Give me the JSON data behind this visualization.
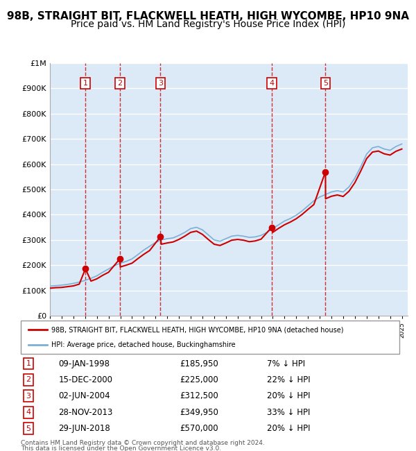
{
  "title": "98B, STRAIGHT BIT, FLACKWELL HEATH, HIGH WYCOMBE, HP10 9NA",
  "subtitle": "Price paid vs. HM Land Registry's House Price Index (HPI)",
  "title_fontsize": 11,
  "subtitle_fontsize": 10,
  "background_color": "#ffffff",
  "plot_bg_color": "#dce9f7",
  "grid_color": "#ffffff",
  "ylim": [
    0,
    1000000
  ],
  "ytick_labels": [
    "£0",
    "£100K",
    "£200K",
    "£300K",
    "£400K",
    "£500K",
    "£600K",
    "£700K",
    "£800K",
    "£900K",
    "£1M"
  ],
  "ytick_values": [
    0,
    100000,
    200000,
    300000,
    400000,
    500000,
    600000,
    700000,
    800000,
    900000,
    1000000
  ],
  "xlim_start": 1995.0,
  "xlim_end": 2025.5,
  "hpi_line_color": "#7bafd4",
  "price_line_color": "#cc0000",
  "marker_color": "#cc0000",
  "dashed_line_color": "#cc0000",
  "sale_dates_x": [
    1998.03,
    2000.96,
    2004.42,
    2013.91,
    2018.49
  ],
  "sale_prices_y": [
    185950,
    225000,
    312500,
    349950,
    570000
  ],
  "sale_labels": [
    "1",
    "2",
    "3",
    "4",
    "5"
  ],
  "sale_date_strings": [
    "09-JAN-1998",
    "15-DEC-2000",
    "02-JUN-2004",
    "28-NOV-2013",
    "29-JUN-2018"
  ],
  "sale_price_strings": [
    "£185,950",
    "£225,000",
    "£312,500",
    "£349,950",
    "£570,000"
  ],
  "sale_hpi_strings": [
    "7% ↓ HPI",
    "22% ↓ HPI",
    "20% ↓ HPI",
    "33% ↓ HPI",
    "20% ↓ HPI"
  ],
  "legend_line1": "98B, STRAIGHT BIT, FLACKWELL HEATH, HIGH WYCOMBE, HP10 9NA (detached house)",
  "legend_line2": "HPI: Average price, detached house, Buckinghamshire",
  "footer_line1": "Contains HM Land Registry data © Crown copyright and database right 2024.",
  "footer_line2": "This data is licensed under the Open Government Licence v3.0.",
  "hpi_years": [
    1995,
    1995.5,
    1996,
    1996.5,
    1997,
    1997.5,
    1998,
    1998.5,
    1999,
    1999.5,
    2000,
    2000.5,
    2001,
    2001.5,
    2002,
    2002.5,
    2003,
    2003.5,
    2004,
    2004.5,
    2005,
    2005.5,
    2006,
    2006.5,
    2007,
    2007.5,
    2008,
    2008.5,
    2009,
    2009.5,
    2010,
    2010.5,
    2011,
    2011.5,
    2012,
    2012.5,
    2013,
    2013.5,
    2014,
    2014.5,
    2015,
    2015.5,
    2016,
    2016.5,
    2017,
    2017.5,
    2018,
    2018.5,
    2019,
    2019.5,
    2020,
    2020.5,
    2021,
    2021.5,
    2022,
    2022.5,
    2023,
    2023.5,
    2024,
    2024.5,
    2025
  ],
  "hpi_values": [
    117000,
    119000,
    121000,
    124000,
    128000,
    133000,
    140000,
    148000,
    158000,
    172000,
    185000,
    198000,
    208000,
    215000,
    225000,
    242000,
    260000,
    275000,
    290000,
    300000,
    305000,
    308000,
    318000,
    330000,
    345000,
    350000,
    340000,
    320000,
    300000,
    295000,
    305000,
    315000,
    318000,
    315000,
    310000,
    312000,
    318000,
    330000,
    345000,
    360000,
    375000,
    385000,
    398000,
    415000,
    435000,
    455000,
    470000,
    480000,
    490000,
    495000,
    490000,
    510000,
    545000,
    590000,
    640000,
    665000,
    670000,
    660000,
    655000,
    670000,
    680000
  ],
  "price_years": [
    1995,
    1995.5,
    1996,
    1996.5,
    1997,
    1997.5,
    1998.03,
    1998.5,
    1999,
    1999.5,
    2000,
    2000.96,
    2001,
    2001.5,
    2002,
    2002.5,
    2003,
    2003.5,
    2004.42,
    2004.5,
    2005,
    2005.5,
    2006,
    2006.5,
    2007,
    2007.5,
    2008,
    2008.5,
    2009,
    2009.5,
    2010,
    2010.5,
    2011,
    2011.5,
    2012,
    2012.5,
    2013,
    2013.91,
    2014,
    2014.5,
    2015,
    2015.5,
    2016,
    2016.5,
    2017,
    2017.5,
    2018.49,
    2018.5,
    2019,
    2019.5,
    2020,
    2020.5,
    2021,
    2021.5,
    2022,
    2022.5,
    2023,
    2023.5,
    2024,
    2024.5,
    2025
  ],
  "price_values": [
    109000,
    111000,
    112000,
    115000,
    118000,
    125000,
    185950,
    137000,
    146000,
    160000,
    172000,
    225000,
    193000,
    200000,
    208000,
    226000,
    243000,
    258000,
    312500,
    283000,
    288000,
    292000,
    302000,
    315000,
    330000,
    335000,
    322000,
    302000,
    283000,
    278000,
    288000,
    299000,
    302000,
    299000,
    293000,
    296000,
    303000,
    349950,
    330000,
    346000,
    360000,
    371000,
    384000,
    401000,
    421000,
    440000,
    570000,
    463000,
    473000,
    478000,
    472000,
    493000,
    527000,
    573000,
    622000,
    648000,
    652000,
    641000,
    636000,
    651000,
    660000
  ]
}
